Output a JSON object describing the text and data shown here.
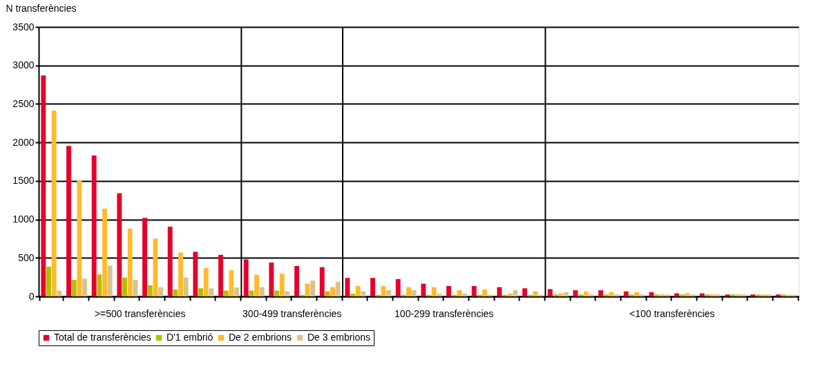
{
  "chart_data": {
    "type": "bar",
    "ylabel": "N transferències",
    "categories": [
      null,
      null,
      null,
      null,
      null,
      null,
      null,
      null,
      null,
      null,
      null,
      null,
      null,
      null,
      null,
      null,
      null,
      null,
      null,
      null,
      null,
      null,
      null,
      null,
      null,
      null,
      null,
      null,
      null,
      null
    ],
    "ylim": [
      0,
      3500
    ],
    "yticks": [
      0,
      500,
      1000,
      1500,
      2000,
      2500,
      3000,
      3500
    ],
    "tick_labels": "y",
    "grid": "y",
    "legend": "bottom",
    "series": [
      {
        "name": "Total de transferències",
        "color": "#e4002b",
        "values": [
          2870,
          1955,
          1830,
          1340,
          1020,
          905,
          580,
          540,
          480,
          440,
          395,
          380,
          240,
          240,
          225,
          165,
          135,
          135,
          120,
          105,
          95,
          80,
          80,
          65,
          55,
          40,
          40,
          25,
          25,
          25
        ]
      },
      {
        "name": "D'1 embrió",
        "color": "#b5bd00",
        "values": [
          385,
          215,
          285,
          245,
          145,
          90,
          105,
          75,
          75,
          75,
          20,
          65,
          35,
          20,
          20,
          20,
          20,
          20,
          20,
          20,
          25,
          25,
          25,
          25,
          25,
          25,
          25,
          25,
          25,
          25
        ]
      },
      {
        "name": "De 2 embrions",
        "color": "#fdbb2d",
        "values": [
          2415,
          1505,
          1140,
          880,
          750,
          570,
          370,
          340,
          280,
          295,
          165,
          120,
          135,
          135,
          120,
          120,
          80,
          90,
          35,
          65,
          40,
          65,
          55,
          55,
          25,
          40,
          25,
          25,
          25,
          20
        ]
      },
      {
        "name": "De 3 embrions",
        "color": "#d9c38b",
        "values": [
          75,
          230,
          400,
          215,
          120,
          245,
          105,
          115,
          120,
          65,
          205,
          190,
          65,
          80,
          80,
          35,
          35,
          20,
          80,
          20,
          55,
          25,
          25,
          25,
          25,
          25,
          25,
          25,
          25,
          20
        ]
      }
    ],
    "annotations": [
      ">=500 transferències",
      "300-499 transferències",
      "100-299 transferències",
      "<100 transferències"
    ]
  }
}
